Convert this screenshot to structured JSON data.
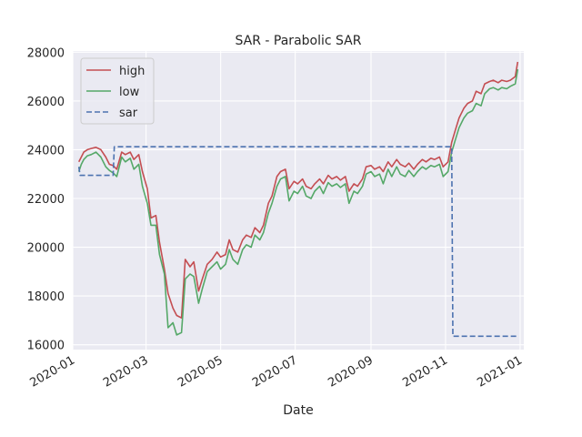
{
  "chart_data": {
    "type": "line",
    "title": "SAR - Parabolic SAR",
    "xlabel": "Date",
    "ylabel": "",
    "xlim": [
      "2020-01-01",
      "2021-01-04"
    ],
    "ylim": [
      15800,
      28050
    ],
    "x_ticks": [
      "2020-01",
      "2020-03",
      "2020-05",
      "2020-07",
      "2020-09",
      "2020-11",
      "2021-01"
    ],
    "y_ticks": [
      16000,
      18000,
      20000,
      22000,
      24000,
      26000,
      28000
    ],
    "y_tick_labels": [
      "16000",
      "18000",
      "20000",
      "22000",
      "24000",
      "26000",
      "28000"
    ],
    "grid": true,
    "legend_position": "upper-left",
    "series": [
      {
        "name": "high",
        "color": "#c44e52",
        "style": "solid",
        "points": [
          [
            "2020-01-06",
            23500
          ],
          [
            "2020-01-08",
            23700
          ],
          [
            "2020-01-10",
            23900
          ],
          [
            "2020-01-13",
            24000
          ],
          [
            "2020-01-16",
            24050
          ],
          [
            "2020-01-20",
            24100
          ],
          [
            "2020-01-24",
            24000
          ],
          [
            "2020-01-28",
            23700
          ],
          [
            "2020-01-31",
            23400
          ],
          [
            "2020-02-03",
            23350
          ],
          [
            "2020-02-06",
            23200
          ],
          [
            "2020-02-10",
            23900
          ],
          [
            "2020-02-13",
            23800
          ],
          [
            "2020-02-17",
            23900
          ],
          [
            "2020-02-20",
            23600
          ],
          [
            "2020-02-24",
            23800
          ],
          [
            "2020-02-27",
            23100
          ],
          [
            "2020-03-02",
            22400
          ],
          [
            "2020-03-05",
            21200
          ],
          [
            "2020-03-09",
            21300
          ],
          [
            "2020-03-12",
            20200
          ],
          [
            "2020-03-16",
            19100
          ],
          [
            "2020-03-19",
            18100
          ],
          [
            "2020-03-23",
            17500
          ],
          [
            "2020-03-26",
            17200
          ],
          [
            "2020-03-30",
            17100
          ],
          [
            "2020-04-02",
            19500
          ],
          [
            "2020-04-06",
            19200
          ],
          [
            "2020-04-09",
            19400
          ],
          [
            "2020-04-13",
            18200
          ],
          [
            "2020-04-16",
            18700
          ],
          [
            "2020-04-20",
            19300
          ],
          [
            "2020-04-24",
            19500
          ],
          [
            "2020-04-28",
            19800
          ],
          [
            "2020-05-01",
            19600
          ],
          [
            "2020-05-05",
            19700
          ],
          [
            "2020-05-08",
            20300
          ],
          [
            "2020-05-11",
            19900
          ],
          [
            "2020-05-15",
            19800
          ],
          [
            "2020-05-19",
            20300
          ],
          [
            "2020-05-22",
            20500
          ],
          [
            "2020-05-26",
            20400
          ],
          [
            "2020-05-29",
            20800
          ],
          [
            "2020-06-02",
            20600
          ],
          [
            "2020-06-05",
            20900
          ],
          [
            "2020-06-09",
            21800
          ],
          [
            "2020-06-12",
            22100
          ],
          [
            "2020-06-16",
            22900
          ],
          [
            "2020-06-19",
            23100
          ],
          [
            "2020-06-23",
            23200
          ],
          [
            "2020-06-26",
            22400
          ],
          [
            "2020-06-30",
            22700
          ],
          [
            "2020-07-03",
            22600
          ],
          [
            "2020-07-07",
            22800
          ],
          [
            "2020-07-10",
            22500
          ],
          [
            "2020-07-14",
            22400
          ],
          [
            "2020-07-17",
            22600
          ],
          [
            "2020-07-21",
            22800
          ],
          [
            "2020-07-24",
            22600
          ],
          [
            "2020-07-28",
            22950
          ],
          [
            "2020-07-31",
            22800
          ],
          [
            "2020-08-04",
            22900
          ],
          [
            "2020-08-07",
            22750
          ],
          [
            "2020-08-11",
            22900
          ],
          [
            "2020-08-14",
            22300
          ],
          [
            "2020-08-18",
            22600
          ],
          [
            "2020-08-21",
            22500
          ],
          [
            "2020-08-25",
            22800
          ],
          [
            "2020-08-28",
            23300
          ],
          [
            "2020-09-01",
            23350
          ],
          [
            "2020-09-04",
            23200
          ],
          [
            "2020-09-08",
            23300
          ],
          [
            "2020-09-11",
            23100
          ],
          [
            "2020-09-15",
            23500
          ],
          [
            "2020-09-18",
            23300
          ],
          [
            "2020-09-22",
            23600
          ],
          [
            "2020-09-25",
            23400
          ],
          [
            "2020-09-29",
            23300
          ],
          [
            "2020-10-02",
            23450
          ],
          [
            "2020-10-06",
            23200
          ],
          [
            "2020-10-09",
            23400
          ],
          [
            "2020-10-13",
            23600
          ],
          [
            "2020-10-16",
            23500
          ],
          [
            "2020-10-20",
            23650
          ],
          [
            "2020-10-23",
            23600
          ],
          [
            "2020-10-27",
            23700
          ],
          [
            "2020-10-30",
            23300
          ],
          [
            "2020-11-03",
            23500
          ],
          [
            "2020-11-06",
            24300
          ],
          [
            "2020-11-09",
            24800
          ],
          [
            "2020-11-12",
            25300
          ],
          [
            "2020-11-16",
            25700
          ],
          [
            "2020-11-19",
            25900
          ],
          [
            "2020-11-23",
            26000
          ],
          [
            "2020-11-26",
            26400
          ],
          [
            "2020-11-30",
            26300
          ],
          [
            "2020-12-03",
            26700
          ],
          [
            "2020-12-07",
            26800
          ],
          [
            "2020-12-10",
            26850
          ],
          [
            "2020-12-14",
            26750
          ],
          [
            "2020-12-17",
            26850
          ],
          [
            "2020-12-21",
            26800
          ],
          [
            "2020-12-24",
            26850
          ],
          [
            "2020-12-28",
            27000
          ],
          [
            "2020-12-30",
            27600
          ]
        ]
      },
      {
        "name": "low",
        "color": "#55a868",
        "style": "solid",
        "points": [
          [
            "2020-01-06",
            23100
          ],
          [
            "2020-01-08",
            23400
          ],
          [
            "2020-01-10",
            23600
          ],
          [
            "2020-01-13",
            23750
          ],
          [
            "2020-01-16",
            23800
          ],
          [
            "2020-01-20",
            23900
          ],
          [
            "2020-01-24",
            23700
          ],
          [
            "2020-01-28",
            23300
          ],
          [
            "2020-01-31",
            23150
          ],
          [
            "2020-02-03",
            23050
          ],
          [
            "2020-02-06",
            22900
          ],
          [
            "2020-02-10",
            23700
          ],
          [
            "2020-02-13",
            23500
          ],
          [
            "2020-02-17",
            23650
          ],
          [
            "2020-02-20",
            23200
          ],
          [
            "2020-02-24",
            23400
          ],
          [
            "2020-02-27",
            22500
          ],
          [
            "2020-03-02",
            21800
          ],
          [
            "2020-03-05",
            20900
          ],
          [
            "2020-03-09",
            20900
          ],
          [
            "2020-03-12",
            19700
          ],
          [
            "2020-03-16",
            18900
          ],
          [
            "2020-03-19",
            16700
          ],
          [
            "2020-03-23",
            16900
          ],
          [
            "2020-03-26",
            16400
          ],
          [
            "2020-03-30",
            16500
          ],
          [
            "2020-04-02",
            18700
          ],
          [
            "2020-04-06",
            18900
          ],
          [
            "2020-04-09",
            18800
          ],
          [
            "2020-04-13",
            17700
          ],
          [
            "2020-04-16",
            18300
          ],
          [
            "2020-04-20",
            19000
          ],
          [
            "2020-04-24",
            19200
          ],
          [
            "2020-04-28",
            19400
          ],
          [
            "2020-05-01",
            19100
          ],
          [
            "2020-05-05",
            19300
          ],
          [
            "2020-05-08",
            19900
          ],
          [
            "2020-05-11",
            19500
          ],
          [
            "2020-05-15",
            19300
          ],
          [
            "2020-05-19",
            19900
          ],
          [
            "2020-05-22",
            20100
          ],
          [
            "2020-05-26",
            20000
          ],
          [
            "2020-05-29",
            20500
          ],
          [
            "2020-06-02",
            20300
          ],
          [
            "2020-06-05",
            20600
          ],
          [
            "2020-06-09",
            21400
          ],
          [
            "2020-06-12",
            21800
          ],
          [
            "2020-06-16",
            22500
          ],
          [
            "2020-06-19",
            22800
          ],
          [
            "2020-06-23",
            22900
          ],
          [
            "2020-06-26",
            21900
          ],
          [
            "2020-06-30",
            22300
          ],
          [
            "2020-07-03",
            22200
          ],
          [
            "2020-07-07",
            22500
          ],
          [
            "2020-07-10",
            22100
          ],
          [
            "2020-07-14",
            22000
          ],
          [
            "2020-07-17",
            22300
          ],
          [
            "2020-07-21",
            22500
          ],
          [
            "2020-07-24",
            22200
          ],
          [
            "2020-07-28",
            22650
          ],
          [
            "2020-07-31",
            22500
          ],
          [
            "2020-08-04",
            22600
          ],
          [
            "2020-08-07",
            22450
          ],
          [
            "2020-08-11",
            22600
          ],
          [
            "2020-08-14",
            21800
          ],
          [
            "2020-08-18",
            22300
          ],
          [
            "2020-08-21",
            22200
          ],
          [
            "2020-08-25",
            22500
          ],
          [
            "2020-08-28",
            23000
          ],
          [
            "2020-09-01",
            23100
          ],
          [
            "2020-09-04",
            22900
          ],
          [
            "2020-09-08",
            23000
          ],
          [
            "2020-09-11",
            22600
          ],
          [
            "2020-09-15",
            23200
          ],
          [
            "2020-09-18",
            22900
          ],
          [
            "2020-09-22",
            23300
          ],
          [
            "2020-09-25",
            23000
          ],
          [
            "2020-09-29",
            22900
          ],
          [
            "2020-10-02",
            23150
          ],
          [
            "2020-10-06",
            22900
          ],
          [
            "2020-10-09",
            23100
          ],
          [
            "2020-10-13",
            23300
          ],
          [
            "2020-10-16",
            23200
          ],
          [
            "2020-10-20",
            23350
          ],
          [
            "2020-10-23",
            23300
          ],
          [
            "2020-10-27",
            23400
          ],
          [
            "2020-10-30",
            22900
          ],
          [
            "2020-11-03",
            23100
          ],
          [
            "2020-11-06",
            23900
          ],
          [
            "2020-11-09",
            24400
          ],
          [
            "2020-11-12",
            24900
          ],
          [
            "2020-11-16",
            25300
          ],
          [
            "2020-11-19",
            25500
          ],
          [
            "2020-11-23",
            25600
          ],
          [
            "2020-11-26",
            25900
          ],
          [
            "2020-11-30",
            25800
          ],
          [
            "2020-12-03",
            26300
          ],
          [
            "2020-12-07",
            26500
          ],
          [
            "2020-12-10",
            26550
          ],
          [
            "2020-12-14",
            26450
          ],
          [
            "2020-12-17",
            26550
          ],
          [
            "2020-12-21",
            26500
          ],
          [
            "2020-12-24",
            26600
          ],
          [
            "2020-12-28",
            26700
          ],
          [
            "2020-12-30",
            27300
          ]
        ]
      },
      {
        "name": "sar",
        "color": "#4c72b0",
        "style": "dashed",
        "points": [
          [
            "2020-01-06",
            23300
          ],
          [
            "2020-01-07",
            22950
          ],
          [
            "2020-02-03",
            22950
          ],
          [
            "2020-02-04",
            24120
          ],
          [
            "2020-11-06",
            24120
          ],
          [
            "2020-11-07",
            16350
          ],
          [
            "2020-12-30",
            16350
          ]
        ]
      }
    ]
  }
}
